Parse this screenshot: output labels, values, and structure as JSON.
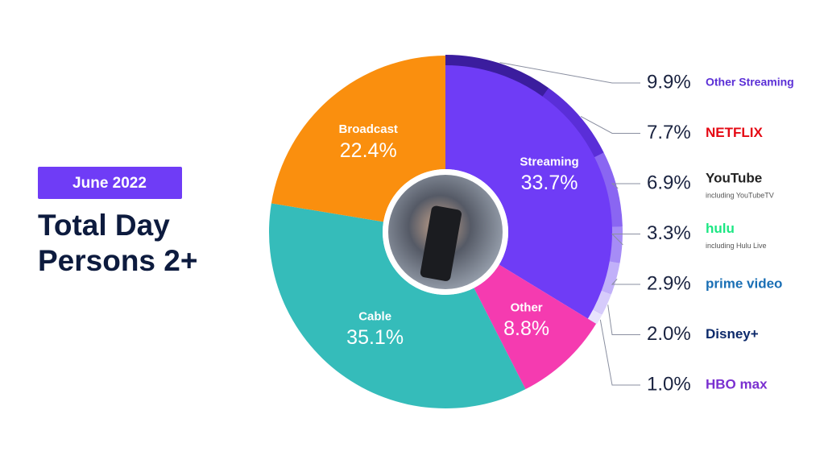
{
  "chart_data": {
    "type": "donut",
    "date_label": "June 2022",
    "title": [
      "Total Day",
      "Persons 2+"
    ],
    "categories": [
      "Streaming",
      "Other",
      "Cable",
      "Broadcast"
    ],
    "values": [
      33.7,
      8.8,
      35.1,
      22.4
    ],
    "value_labels": [
      "33.7%",
      "8.8%",
      "35.1%",
      "22.4%"
    ],
    "colors": [
      "#6f3cf6",
      "#f53bb0",
      "#35bcba",
      "#fa8f0e"
    ],
    "breakdown": {
      "categories": [
        "Other Streaming",
        "NETFLIX",
        "YouTube",
        "hulu",
        "prime video",
        "Disney+",
        "HBO max"
      ],
      "notes": [
        null,
        null,
        "including YouTubeTV",
        "including Hulu Live",
        null,
        null,
        null
      ],
      "values": [
        9.9,
        7.7,
        6.9,
        3.3,
        2.9,
        2.0,
        1.0
      ],
      "value_labels": [
        "9.9%",
        "7.7%",
        "6.9%",
        "3.3%",
        "2.9%",
        "2.0%",
        "1.0%"
      ],
      "colors": [
        "#3b1d9e",
        "#5a2ed8",
        "#8a66f2",
        "#a68cf6",
        "#c1b0f9",
        "#d6cbfb",
        "#e8e2fd"
      ],
      "label_colors": [
        "#5b2fd6",
        "#e50914",
        "#222222",
        "#1ce783",
        "#1a6fb5",
        "#0d2a6b",
        "#7a2fd0"
      ]
    }
  }
}
